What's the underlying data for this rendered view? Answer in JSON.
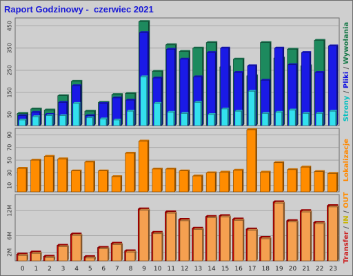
{
  "title": "Raport Godzinowy -  czerwiec 2021",
  "chart_data": {
    "type": "bar",
    "categories": [
      "0",
      "1",
      "2",
      "3",
      "4",
      "5",
      "6",
      "7",
      "8",
      "9",
      "10",
      "11",
      "12",
      "13",
      "14",
      "15",
      "16",
      "17",
      "18",
      "19",
      "20",
      "21",
      "22",
      "23"
    ],
    "panels": [
      {
        "id": "traffic",
        "ylim": [
          0,
          480
        ],
        "yticks": [
          "50",
          "150",
          "250",
          "350",
          "450"
        ],
        "ytick_values": [
          50,
          150,
          250,
          350,
          450
        ],
        "ylabel_parts": [
          {
            "text": "Strony",
            "color": "#00bfbf"
          },
          {
            "text": " / ",
            "color": "#555555"
          },
          {
            "text": "Pliki",
            "color": "#1010e0"
          },
          {
            "text": " / ",
            "color": "#555555"
          },
          {
            "text": "Wywołania",
            "color": "#1a7a4a"
          }
        ],
        "series": [
          {
            "name": "Wywołania",
            "color": "#1d8a5e",
            "values": [
              55,
              75,
              70,
              135,
              200,
              65,
              105,
              140,
              145,
              470,
              245,
              365,
              335,
              350,
              375,
              265,
              300,
              225,
              375,
              305,
              345,
              270,
              385,
              0
            ]
          },
          {
            "name": "Pliki",
            "color": "#1a1ae6",
            "values": [
              45,
              60,
              50,
              105,
              180,
              45,
              100,
              125,
              115,
              420,
              215,
              345,
              300,
              220,
              330,
              350,
              240,
              270,
              205,
              350,
              275,
              330,
              240,
              360
            ]
          },
          {
            "name": "Strony",
            "color": "#33e0ee",
            "values": [
              25,
              40,
              45,
              45,
              100,
              35,
              30,
              25,
              65,
              220,
              100,
              60,
              55,
              105,
              50,
              75,
              65,
              155,
              55,
              60,
              70,
              55,
              55,
              65
            ]
          }
        ]
      },
      {
        "id": "visits",
        "ylim": [
          0,
          98
        ],
        "yticks": [
          "10",
          "30",
          "50",
          "70",
          "90"
        ],
        "ytick_values": [
          10,
          30,
          50,
          70,
          90
        ],
        "ylabel_parts": [
          {
            "text": "Lokalizacje",
            "color": "#ff8800"
          }
        ],
        "series": [
          {
            "name": "Lokalizacje",
            "color": "#ff8c00",
            "values": [
              37,
              50,
              56,
              52,
              33,
              47,
              33,
              24,
              61,
              80,
              36,
              36,
              33,
              25,
              30,
              31,
              34,
              98,
              31,
              46,
              35,
              39,
              32,
              29
            ]
          }
        ]
      },
      {
        "id": "transfer",
        "ylim": [
          0,
          15.5
        ],
        "yticks": [
          "2M",
          "6M",
          "12M"
        ],
        "ytick_values": [
          2,
          6,
          12
        ],
        "ylabel_parts": [
          {
            "text": "Transfer",
            "color": "#cc2222"
          },
          {
            "text": " / ",
            "color": "#555555"
          },
          {
            "text": "IN",
            "color": "#c8b400"
          },
          {
            "text": " / ",
            "color": "#555555"
          },
          {
            "text": "OUT",
            "color": "#ff8c00"
          }
        ],
        "series": [
          {
            "name": "Transfer",
            "color": "#c00000",
            "values": [
              1.6,
              2.1,
              1.1,
              3.7,
              6.4,
              1.0,
              3.2,
              4.2,
              2.4,
              12.4,
              6.8,
              11.7,
              9.9,
              7.8,
              10.6,
              10.8,
              10.0,
              7.6,
              5.6,
              14.1,
              9.6,
              12.0,
              9.2,
              13.2
            ]
          },
          {
            "name": "IN",
            "color": "#f5a050",
            "values": [
              1.6,
              2.1,
              1.1,
              3.7,
              6.4,
              1.0,
              3.2,
              4.2,
              2.4,
              12.4,
              6.8,
              11.7,
              9.9,
              7.8,
              10.6,
              10.8,
              10.0,
              7.6,
              5.6,
              14.1,
              9.6,
              12.0,
              9.2,
              13.2
            ]
          }
        ]
      }
    ]
  }
}
